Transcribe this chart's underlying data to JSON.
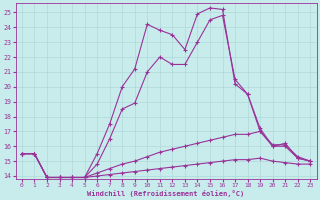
{
  "xlabel": "Windchill (Refroidissement éolien,°C)",
  "bg_color": "#c8ecec",
  "line_color": "#993399",
  "grid_color": "#b0d8d8",
  "xlim": [
    -0.5,
    23.5
  ],
  "ylim": [
    13.8,
    25.6
  ],
  "xticks": [
    0,
    1,
    2,
    3,
    4,
    5,
    6,
    7,
    8,
    9,
    10,
    11,
    12,
    13,
    14,
    15,
    16,
    17,
    18,
    19,
    20,
    21,
    22,
    23
  ],
  "yticks": [
    14,
    15,
    16,
    17,
    18,
    19,
    20,
    21,
    22,
    23,
    24,
    25
  ],
  "series": [
    [
      15.5,
      15.5,
      13.9,
      13.9,
      13.9,
      13.9,
      15.5,
      17.5,
      20.0,
      21.2,
      24.2,
      23.8,
      23.5,
      22.5,
      24.9,
      25.3,
      25.2,
      20.2,
      19.5,
      17.2,
      16.0,
      16.2,
      15.2,
      15.0
    ],
    [
      15.5,
      15.5,
      13.9,
      13.9,
      13.9,
      13.9,
      14.8,
      16.5,
      18.5,
      18.9,
      21.0,
      22.0,
      21.5,
      21.5,
      23.0,
      24.5,
      24.8,
      20.5,
      19.5,
      17.0,
      16.0,
      16.0,
      15.2,
      15.0
    ],
    [
      15.5,
      15.5,
      13.9,
      13.9,
      13.9,
      13.9,
      14.2,
      14.5,
      14.8,
      15.0,
      15.3,
      15.6,
      15.8,
      16.0,
      16.2,
      16.4,
      16.6,
      16.8,
      16.8,
      17.0,
      16.1,
      16.1,
      15.3,
      15.0
    ],
    [
      15.5,
      15.5,
      13.9,
      13.9,
      13.9,
      13.9,
      14.0,
      14.1,
      14.2,
      14.3,
      14.4,
      14.5,
      14.6,
      14.7,
      14.8,
      14.9,
      15.0,
      15.1,
      15.1,
      15.2,
      15.0,
      14.9,
      14.8,
      14.8
    ]
  ]
}
